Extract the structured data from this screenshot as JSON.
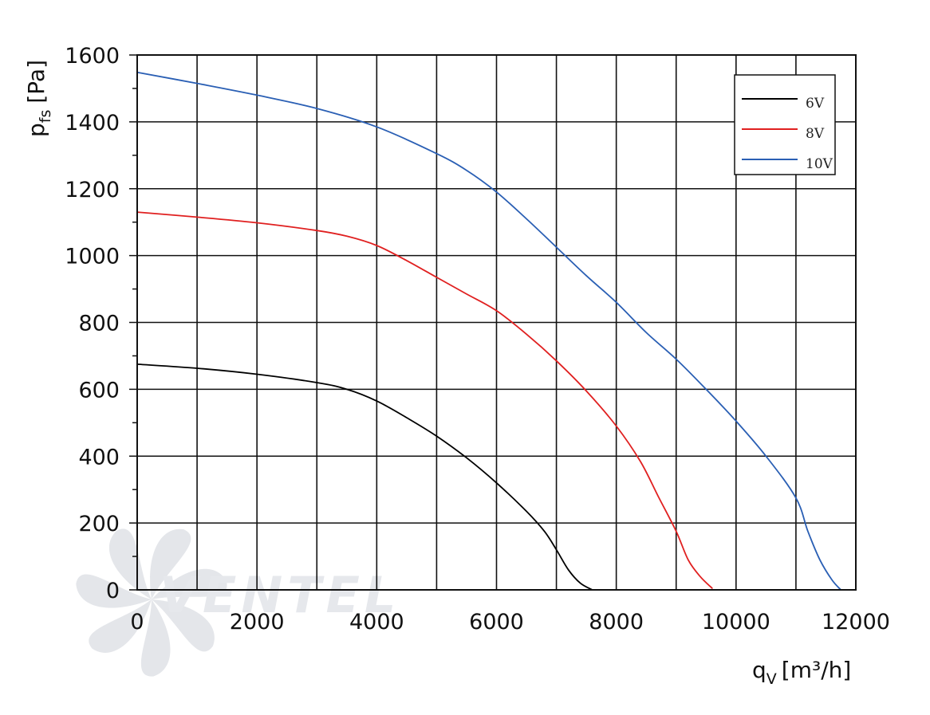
{
  "chart_data": {
    "type": "line",
    "xlabel": {
      "main": "q",
      "sub": "V",
      "unit": "[m³/h]"
    },
    "ylabel": {
      "main": "p",
      "sub": "fs",
      "unit": "[Pa]"
    },
    "xlim": [
      0,
      12000
    ],
    "ylim": [
      0,
      1600
    ],
    "x_ticks": [
      "0",
      "2000",
      "4000",
      "6000",
      "8000",
      "10000",
      "12000"
    ],
    "y_ticks": [
      "0",
      "200",
      "400",
      "600",
      "800",
      "1000",
      "1200",
      "1400",
      "1600"
    ],
    "x_grid_step": 1000,
    "y_grid_step": 200,
    "grid": true,
    "legend_position": "top-right",
    "watermark": "VENTEL",
    "series": [
      {
        "name": "6V",
        "color": "#000000",
        "points": [
          [
            0,
            675
          ],
          [
            1000,
            663
          ],
          [
            2000,
            645
          ],
          [
            3000,
            620
          ],
          [
            3500,
            600
          ],
          [
            4000,
            565
          ],
          [
            4500,
            515
          ],
          [
            5000,
            460
          ],
          [
            5500,
            395
          ],
          [
            6000,
            320
          ],
          [
            6500,
            235
          ],
          [
            6800,
            175
          ],
          [
            7000,
            120
          ],
          [
            7200,
            60
          ],
          [
            7400,
            20
          ],
          [
            7600,
            0
          ]
        ]
      },
      {
        "name": "8V",
        "color": "#e02020",
        "points": [
          [
            0,
            1130
          ],
          [
            1000,
            1115
          ],
          [
            2000,
            1098
          ],
          [
            3000,
            1075
          ],
          [
            3500,
            1058
          ],
          [
            4000,
            1030
          ],
          [
            4500,
            985
          ],
          [
            5000,
            935
          ],
          [
            5500,
            885
          ],
          [
            6000,
            835
          ],
          [
            6500,
            765
          ],
          [
            7000,
            685
          ],
          [
            7500,
            595
          ],
          [
            8000,
            490
          ],
          [
            8400,
            385
          ],
          [
            8700,
            280
          ],
          [
            9000,
            175
          ],
          [
            9200,
            90
          ],
          [
            9400,
            40
          ],
          [
            9600,
            5
          ]
        ]
      },
      {
        "name": "10V",
        "color": "#2a5fb4",
        "points": [
          [
            0,
            1548
          ],
          [
            1000,
            1515
          ],
          [
            2000,
            1480
          ],
          [
            3000,
            1440
          ],
          [
            4000,
            1385
          ],
          [
            5000,
            1305
          ],
          [
            5500,
            1255
          ],
          [
            6000,
            1190
          ],
          [
            6500,
            1110
          ],
          [
            7000,
            1025
          ],
          [
            7500,
            940
          ],
          [
            8000,
            860
          ],
          [
            8500,
            770
          ],
          [
            9000,
            690
          ],
          [
            9500,
            600
          ],
          [
            10000,
            505
          ],
          [
            10500,
            400
          ],
          [
            11000,
            275
          ],
          [
            11200,
            175
          ],
          [
            11400,
            90
          ],
          [
            11600,
            30
          ],
          [
            11750,
            0
          ]
        ]
      }
    ]
  }
}
